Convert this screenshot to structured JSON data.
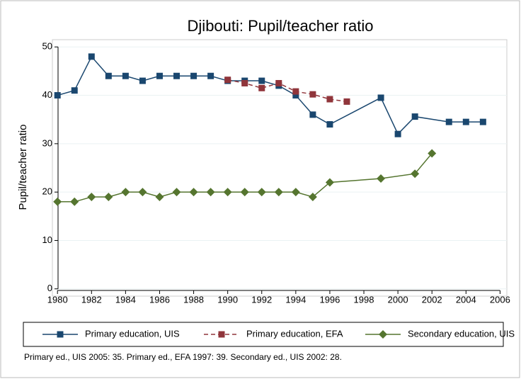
{
  "chart_data": {
    "type": "line",
    "title": "Djibouti: Pupil/teacher ratio",
    "y_label": "Pupil/teacher ratio",
    "note": "Primary ed., UIS 2005: 35. Primary ed., EFA 1997: 39. Secondary ed., UIS 2002: 28.",
    "xlim": [
      1979.7,
      2006.4
    ],
    "xticks": [
      1980,
      1982,
      1984,
      1986,
      1988,
      1990,
      1992,
      1994,
      1996,
      1998,
      2000,
      2002,
      2004,
      2006
    ],
    "ylim": [
      -1.5,
      51.5
    ],
    "yticks": [
      0,
      10,
      20,
      30,
      40,
      50
    ],
    "grid": true,
    "legend": "bottom",
    "series": [
      {
        "name": "Primary education, UIS",
        "color": "#1a476f",
        "marker": "square",
        "dashed": false,
        "x": [
          1980,
          1981,
          1982,
          1983,
          1984,
          1985,
          1986,
          1987,
          1988,
          1989,
          1990,
          1991,
          1992,
          1993,
          1994,
          1995,
          1996,
          1999,
          2000,
          2001,
          2003,
          2004,
          2005
        ],
        "values": [
          40,
          41,
          48,
          44,
          44,
          43,
          44,
          44,
          44,
          44,
          43,
          43,
          43,
          42,
          40,
          36,
          34,
          39.5,
          32,
          35.6,
          34.5,
          34.5,
          34.5
        ]
      },
      {
        "name": "Primary education, EFA",
        "color": "#90353b",
        "marker": "square",
        "dashed": true,
        "x": [
          1990,
          1991,
          1992,
          1993,
          1994,
          1995,
          1996,
          1997
        ],
        "values": [
          43.2,
          42.5,
          41.5,
          42.5,
          40.8,
          40.2,
          39.2,
          38.7
        ]
      },
      {
        "name": "Secondary education, UIS",
        "color": "#55752f",
        "marker": "diamond",
        "dashed": false,
        "x": [
          1980,
          1981,
          1982,
          1983,
          1984,
          1985,
          1986,
          1987,
          1988,
          1989,
          1990,
          1991,
          1992,
          1993,
          1994,
          1995,
          1996,
          1999,
          2001,
          2002
        ],
        "values": [
          18,
          18,
          19,
          19,
          20,
          20,
          19,
          20,
          20,
          20,
          20,
          20,
          20,
          20,
          20,
          19,
          22,
          22.8,
          23.8,
          28
        ]
      }
    ]
  }
}
